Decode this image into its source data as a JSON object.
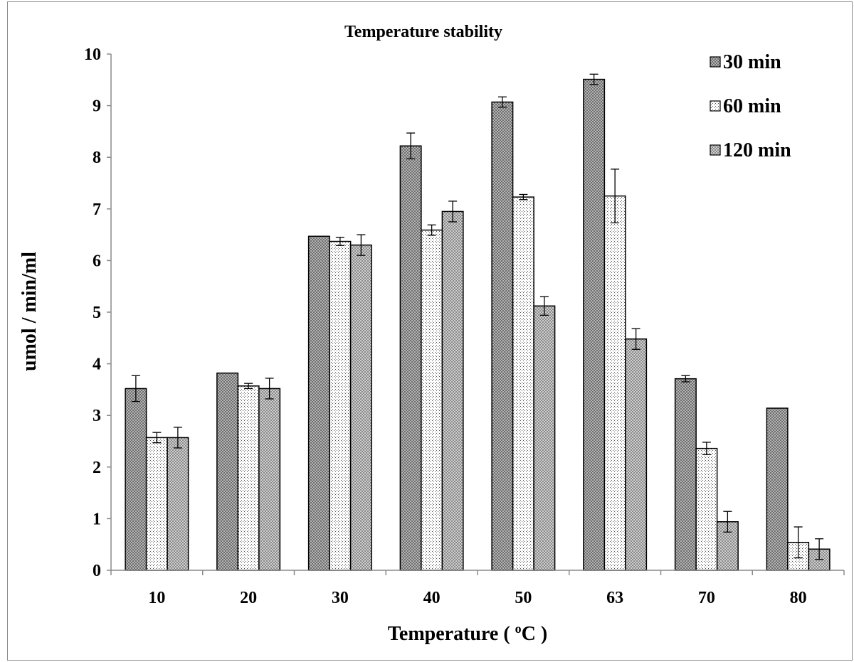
{
  "chart_data": {
    "type": "bar",
    "title": "Temperature stability",
    "xlabel": "Temperature ( oC )",
    "xlabel_parts": {
      "prefix": "Temperature ( ",
      "sup": "o",
      "unit": "C",
      "suffix": " )"
    },
    "ylabel": "umol / min/ml",
    "ylim": [
      0,
      10
    ],
    "yticks": [
      "0",
      "1",
      "2",
      "3",
      "4",
      "5",
      "6",
      "7",
      "8",
      "9",
      "10"
    ],
    "categories": [
      "10",
      "20",
      "30",
      "40",
      "50",
      "63",
      "70",
      "80"
    ],
    "legend_position": "top-right",
    "grid": false,
    "series": [
      {
        "name": "30 min",
        "color": "#8c8c8c",
        "pattern": "dense-dark",
        "values": [
          3.52,
          3.82,
          6.47,
          8.22,
          9.07,
          9.51,
          3.71,
          3.14
        ],
        "errors": [
          0.25,
          0.0,
          0.0,
          0.25,
          0.1,
          0.1,
          0.06,
          0.0
        ]
      },
      {
        "name": "60 min",
        "color": "#ffffff",
        "pattern": "dotted-light",
        "values": [
          2.57,
          3.57,
          6.37,
          6.59,
          7.23,
          7.25,
          2.36,
          0.54
        ],
        "errors": [
          0.1,
          0.05,
          0.08,
          0.1,
          0.05,
          0.52,
          0.12,
          0.3
        ]
      },
      {
        "name": "120 min",
        "color": "#a8a8a8",
        "pattern": "checker-medium",
        "values": [
          2.57,
          3.52,
          6.3,
          6.95,
          5.12,
          4.48,
          0.94,
          0.41
        ],
        "errors": [
          0.2,
          0.2,
          0.2,
          0.2,
          0.18,
          0.2,
          0.2,
          0.2
        ]
      }
    ]
  }
}
